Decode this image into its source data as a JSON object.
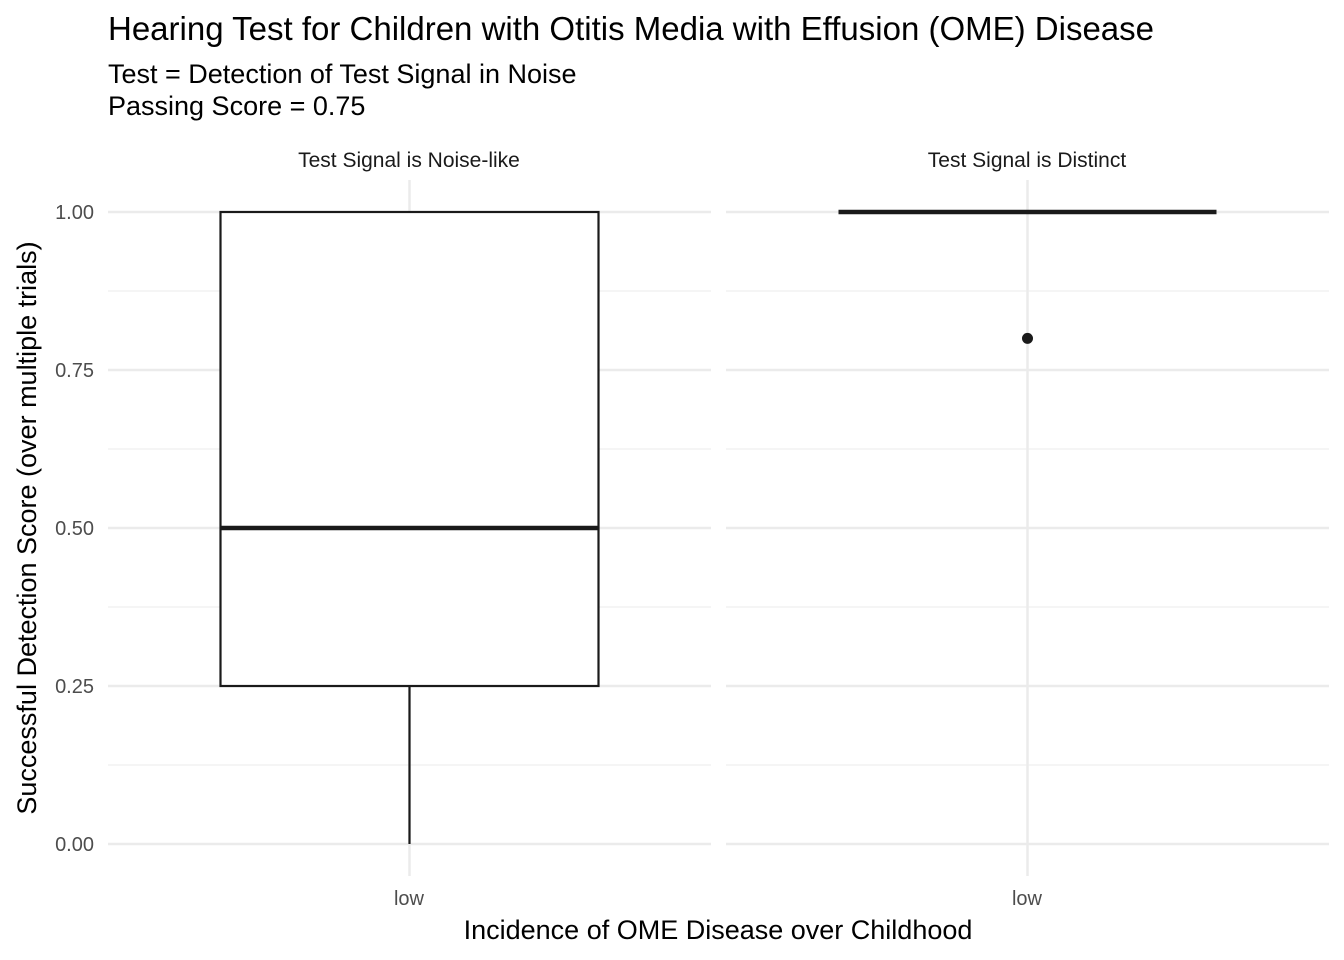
{
  "chart_data": {
    "type": "boxplot",
    "title": "Hearing Test for Children with Otitis Media with Effusion (OME) Disease",
    "subtitle_lines": [
      "Test = Detection of Test Signal in Noise",
      "Passing Score = 0.75"
    ],
    "xlabel": "Incidence of OME Disease over Childhood",
    "ylabel": "Successful Detection Score (over multiple trials)",
    "ylim": [
      0,
      1
    ],
    "y_ticks": [
      "0.00",
      "0.25",
      "0.50",
      "0.75",
      "1.00"
    ],
    "y_tick_values": [
      0,
      0.25,
      0.5,
      0.75,
      1.0
    ],
    "y_minor_values": [
      0.125,
      0.375,
      0.625,
      0.875
    ],
    "grid": true,
    "legend": "none",
    "facets": [
      {
        "label": "Test Signal is Noise-like",
        "categories": [
          "low"
        ],
        "boxes": [
          {
            "category": "low",
            "min": 0.0,
            "q1": 0.25,
            "median": 0.5,
            "q3": 1.0,
            "max": 1.0,
            "outliers": []
          }
        ]
      },
      {
        "label": "Test Signal is Distinct",
        "categories": [
          "low"
        ],
        "boxes": [
          {
            "category": "low",
            "min": 1.0,
            "q1": 1.0,
            "median": 1.0,
            "q3": 1.0,
            "max": 1.0,
            "outliers": [
              0.8
            ]
          }
        ]
      }
    ]
  },
  "colors": {
    "box_line": "#1a1a1a",
    "grid_major": "#ebebeb",
    "grid_minor": "#f2f2f2",
    "point": "#1a1a1a"
  }
}
